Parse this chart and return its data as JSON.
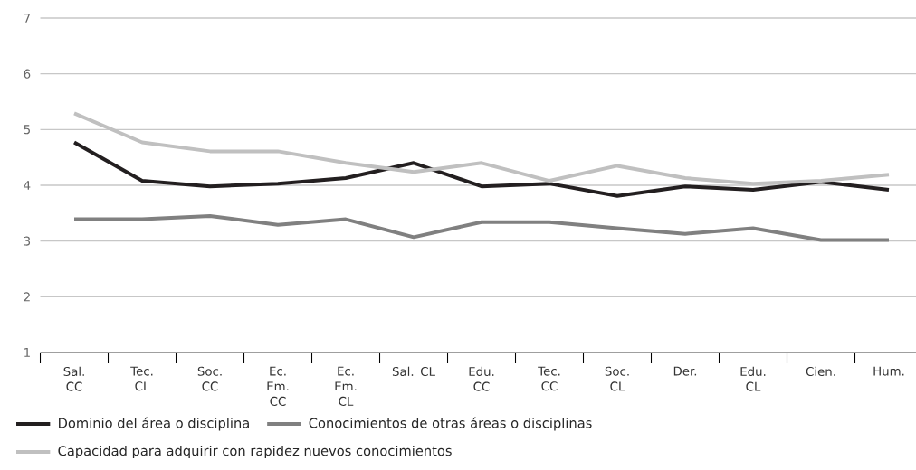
{
  "chart_data": {
    "type": "line",
    "categories": [
      "Sal. CC",
      "Tec. CL",
      "Soc. CC",
      "Ec. Em. CC",
      "Ec. Em. CL",
      "Sal. CL",
      "Edu. CC",
      "Tec. CC",
      "Soc. CL",
      "Der.",
      "Edu. CL",
      "Cien.",
      "Hum."
    ],
    "series": [
      {
        "name": "Dominio del área o disciplina",
        "color": "#231f20",
        "values": [
          4.77,
          4.08,
          3.98,
          4.03,
          4.13,
          4.4,
          3.98,
          4.03,
          3.81,
          3.98,
          3.92,
          4.06,
          3.92
        ]
      },
      {
        "name": "Conocimientos de otras áreas o disciplinas",
        "color": "#808080",
        "values": [
          3.39,
          3.39,
          3.45,
          3.29,
          3.39,
          3.07,
          3.34,
          3.34,
          3.23,
          3.13,
          3.23,
          3.02,
          3.02
        ]
      },
      {
        "name": "Capacidad para adquirir con rapidez nuevos conocimientos",
        "color": "#c0c0c0",
        "values": [
          5.29,
          4.77,
          4.61,
          4.61,
          4.4,
          4.24,
          4.4,
          4.08,
          4.35,
          4.13,
          4.03,
          4.08,
          4.19
        ]
      }
    ],
    "ylim": [
      1,
      7
    ],
    "yticks": [
      1,
      2,
      3,
      4,
      5,
      6,
      7
    ],
    "grid": "y",
    "legend": "bottom left",
    "marker": "none",
    "line_style": "solid"
  }
}
